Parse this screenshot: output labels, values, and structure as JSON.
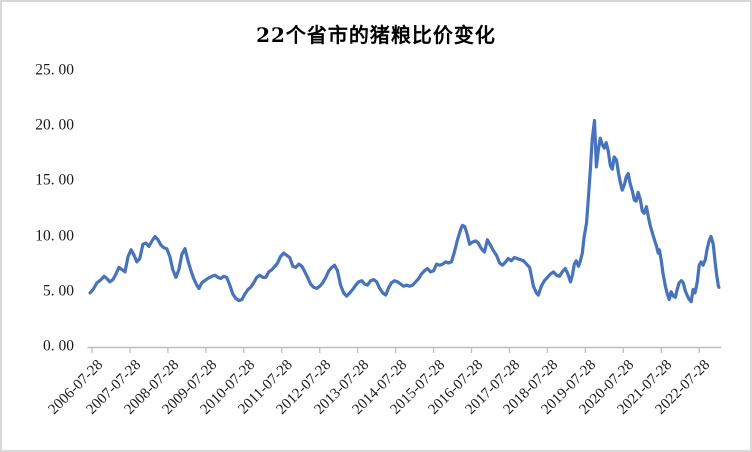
{
  "frame": {
    "background": "#ffffff",
    "border_color": "#d8d8d8"
  },
  "chart_data": {
    "type": "line",
    "title": "22个省市的猪粮比价变化",
    "xlabel": "",
    "ylabel": "",
    "grid": false,
    "legend": "none",
    "line_color": "#4472c4",
    "axis_color": "#bfbfbf",
    "label_color": "#1a1a1a",
    "ylim": [
      0,
      25
    ],
    "xlim": [
      2006.5,
      2023.15
    ],
    "y_ticks": [
      {
        "v": 0,
        "label": "0. 00"
      },
      {
        "v": 5,
        "label": "5. 00"
      },
      {
        "v": 10,
        "label": "10. 00"
      },
      {
        "v": 15,
        "label": "15. 00"
      },
      {
        "v": 20,
        "label": "20. 00"
      },
      {
        "v": 25,
        "label": "25. 00"
      }
    ],
    "x_ticks": [
      {
        "t": 2006.57,
        "label": "2006-07-28"
      },
      {
        "t": 2007.57,
        "label": "2007-07-28"
      },
      {
        "t": 2008.57,
        "label": "2008-07-28"
      },
      {
        "t": 2009.57,
        "label": "2009-07-28"
      },
      {
        "t": 2010.57,
        "label": "2010-07-28"
      },
      {
        "t": 2011.57,
        "label": "2011-07-28"
      },
      {
        "t": 2012.57,
        "label": "2012-07-28"
      },
      {
        "t": 2013.57,
        "label": "2013-07-28"
      },
      {
        "t": 2014.57,
        "label": "2014-07-28"
      },
      {
        "t": 2015.57,
        "label": "2015-07-28"
      },
      {
        "t": 2016.57,
        "label": "2016-07-28"
      },
      {
        "t": 2017.57,
        "label": "2017-07-28"
      },
      {
        "t": 2018.57,
        "label": "2018-07-28"
      },
      {
        "t": 2019.57,
        "label": "2019-07-28"
      },
      {
        "t": 2020.57,
        "label": "2020-07-28"
      },
      {
        "t": 2021.57,
        "label": "2021-07-28"
      },
      {
        "t": 2022.57,
        "label": "2022-07-28"
      }
    ],
    "series": [
      {
        "name": "猪粮比价",
        "color": "#4472c4",
        "points": [
          [
            2006.52,
            4.9
          ],
          [
            2006.6,
            5.2
          ],
          [
            2006.7,
            5.8
          ],
          [
            2006.81,
            6.1
          ],
          [
            2006.89,
            6.4
          ],
          [
            2006.96,
            6.2
          ],
          [
            2007.04,
            5.9
          ],
          [
            2007.12,
            6.1
          ],
          [
            2007.2,
            6.6
          ],
          [
            2007.28,
            7.2
          ],
          [
            2007.36,
            7.0
          ],
          [
            2007.44,
            6.8
          ],
          [
            2007.52,
            8.2
          ],
          [
            2007.6,
            8.8
          ],
          [
            2007.68,
            8.3
          ],
          [
            2007.75,
            7.7
          ],
          [
            2007.83,
            8.0
          ],
          [
            2007.91,
            9.3
          ],
          [
            2007.99,
            9.4
          ],
          [
            2008.07,
            9.1
          ],
          [
            2008.15,
            9.6
          ],
          [
            2008.23,
            10.0
          ],
          [
            2008.31,
            9.7
          ],
          [
            2008.39,
            9.2
          ],
          [
            2008.46,
            9.0
          ],
          [
            2008.54,
            8.9
          ],
          [
            2008.62,
            8.2
          ],
          [
            2008.7,
            7.0
          ],
          [
            2008.78,
            6.3
          ],
          [
            2008.86,
            7.0
          ],
          [
            2008.94,
            8.4
          ],
          [
            2009.02,
            8.9
          ],
          [
            2009.1,
            7.8
          ],
          [
            2009.18,
            6.9
          ],
          [
            2009.25,
            6.2
          ],
          [
            2009.33,
            5.6
          ],
          [
            2009.39,
            5.3
          ],
          [
            2009.46,
            5.8
          ],
          [
            2009.54,
            6.0
          ],
          [
            2009.62,
            6.2
          ],
          [
            2009.73,
            6.4
          ],
          [
            2009.81,
            6.5
          ],
          [
            2009.89,
            6.3
          ],
          [
            2009.96,
            6.2
          ],
          [
            2010.04,
            6.4
          ],
          [
            2010.12,
            6.3
          ],
          [
            2010.2,
            5.6
          ],
          [
            2010.28,
            4.8
          ],
          [
            2010.36,
            4.4
          ],
          [
            2010.44,
            4.2
          ],
          [
            2010.52,
            4.3
          ],
          [
            2010.6,
            4.8
          ],
          [
            2010.68,
            5.2
          ],
          [
            2010.75,
            5.4
          ],
          [
            2010.83,
            5.8
          ],
          [
            2010.91,
            6.3
          ],
          [
            2010.99,
            6.5
          ],
          [
            2011.07,
            6.3
          ],
          [
            2011.15,
            6.3
          ],
          [
            2011.23,
            6.8
          ],
          [
            2011.31,
            7.0
          ],
          [
            2011.39,
            7.3
          ],
          [
            2011.46,
            7.6
          ],
          [
            2011.54,
            8.2
          ],
          [
            2011.62,
            8.5
          ],
          [
            2011.7,
            8.3
          ],
          [
            2011.78,
            8.1
          ],
          [
            2011.86,
            7.3
          ],
          [
            2011.94,
            7.2
          ],
          [
            2012.02,
            7.5
          ],
          [
            2012.1,
            7.3
          ],
          [
            2012.18,
            6.8
          ],
          [
            2012.25,
            6.3
          ],
          [
            2012.33,
            5.7
          ],
          [
            2012.41,
            5.4
          ],
          [
            2012.49,
            5.3
          ],
          [
            2012.57,
            5.5
          ],
          [
            2012.65,
            5.8
          ],
          [
            2012.73,
            6.3
          ],
          [
            2012.81,
            6.9
          ],
          [
            2012.89,
            7.2
          ],
          [
            2012.96,
            7.4
          ],
          [
            2013.04,
            6.9
          ],
          [
            2013.12,
            5.6
          ],
          [
            2013.2,
            4.9
          ],
          [
            2013.28,
            4.6
          ],
          [
            2013.36,
            4.9
          ],
          [
            2013.44,
            5.2
          ],
          [
            2013.52,
            5.6
          ],
          [
            2013.6,
            5.9
          ],
          [
            2013.68,
            6.0
          ],
          [
            2013.75,
            5.7
          ],
          [
            2013.83,
            5.6
          ],
          [
            2013.91,
            6.0
          ],
          [
            2013.99,
            6.1
          ],
          [
            2014.07,
            5.9
          ],
          [
            2014.15,
            5.3
          ],
          [
            2014.23,
            4.9
          ],
          [
            2014.31,
            4.7
          ],
          [
            2014.39,
            5.4
          ],
          [
            2014.46,
            5.8
          ],
          [
            2014.54,
            6.0
          ],
          [
            2014.62,
            5.9
          ],
          [
            2014.7,
            5.7
          ],
          [
            2014.78,
            5.5
          ],
          [
            2014.86,
            5.6
          ],
          [
            2014.94,
            5.5
          ],
          [
            2015.02,
            5.6
          ],
          [
            2015.1,
            5.9
          ],
          [
            2015.18,
            6.2
          ],
          [
            2015.25,
            6.6
          ],
          [
            2015.33,
            6.9
          ],
          [
            2015.41,
            7.1
          ],
          [
            2015.49,
            6.8
          ],
          [
            2015.57,
            6.9
          ],
          [
            2015.65,
            7.5
          ],
          [
            2015.73,
            7.4
          ],
          [
            2015.81,
            7.5
          ],
          [
            2015.89,
            7.7
          ],
          [
            2015.96,
            7.6
          ],
          [
            2016.04,
            7.7
          ],
          [
            2016.12,
            8.6
          ],
          [
            2016.2,
            9.7
          ],
          [
            2016.28,
            10.6
          ],
          [
            2016.33,
            11.0
          ],
          [
            2016.39,
            10.9
          ],
          [
            2016.44,
            10.4
          ],
          [
            2016.52,
            9.3
          ],
          [
            2016.6,
            9.5
          ],
          [
            2016.68,
            9.6
          ],
          [
            2016.75,
            9.4
          ],
          [
            2016.83,
            8.9
          ],
          [
            2016.91,
            8.6
          ],
          [
            2016.99,
            9.7
          ],
          [
            2017.07,
            9.2
          ],
          [
            2017.15,
            8.7
          ],
          [
            2017.23,
            8.3
          ],
          [
            2017.31,
            7.6
          ],
          [
            2017.39,
            7.4
          ],
          [
            2017.47,
            7.7
          ],
          [
            2017.54,
            8.0
          ],
          [
            2017.62,
            7.8
          ],
          [
            2017.7,
            8.1
          ],
          [
            2017.78,
            8.0
          ],
          [
            2017.86,
            7.9
          ],
          [
            2017.94,
            7.8
          ],
          [
            2018.02,
            7.5
          ],
          [
            2018.1,
            7.2
          ],
          [
            2018.15,
            6.4
          ],
          [
            2018.2,
            5.5
          ],
          [
            2018.28,
            4.9
          ],
          [
            2018.33,
            4.7
          ],
          [
            2018.41,
            5.5
          ],
          [
            2018.49,
            6.0
          ],
          [
            2018.57,
            6.3
          ],
          [
            2018.65,
            6.6
          ],
          [
            2018.73,
            6.8
          ],
          [
            2018.81,
            6.5
          ],
          [
            2018.89,
            6.4
          ],
          [
            2018.96,
            6.8
          ],
          [
            2019.04,
            7.1
          ],
          [
            2019.1,
            6.7
          ],
          [
            2019.18,
            5.9
          ],
          [
            2019.23,
            6.5
          ],
          [
            2019.28,
            7.5
          ],
          [
            2019.33,
            7.8
          ],
          [
            2019.39,
            7.3
          ],
          [
            2019.44,
            7.8
          ],
          [
            2019.49,
            8.5
          ],
          [
            2019.54,
            10.0
          ],
          [
            2019.6,
            11.2
          ],
          [
            2019.65,
            13.5
          ],
          [
            2019.7,
            16.0
          ],
          [
            2019.75,
            18.8
          ],
          [
            2019.81,
            20.5
          ],
          [
            2019.86,
            16.3
          ],
          [
            2019.91,
            17.8
          ],
          [
            2019.96,
            18.9
          ],
          [
            2020.02,
            18.3
          ],
          [
            2020.07,
            18.0
          ],
          [
            2020.12,
            18.5
          ],
          [
            2020.17,
            17.8
          ],
          [
            2020.23,
            16.4
          ],
          [
            2020.28,
            16.1
          ],
          [
            2020.33,
            17.2
          ],
          [
            2020.39,
            16.9
          ],
          [
            2020.44,
            15.8
          ],
          [
            2020.49,
            14.9
          ],
          [
            2020.54,
            14.2
          ],
          [
            2020.6,
            14.7
          ],
          [
            2020.65,
            15.4
          ],
          [
            2020.7,
            15.7
          ],
          [
            2020.75,
            14.8
          ],
          [
            2020.81,
            14.1
          ],
          [
            2020.86,
            13.3
          ],
          [
            2020.91,
            13.2
          ],
          [
            2020.96,
            14.0
          ],
          [
            2021.02,
            13.3
          ],
          [
            2021.07,
            12.3
          ],
          [
            2021.12,
            12.1
          ],
          [
            2021.18,
            12.7
          ],
          [
            2021.23,
            11.8
          ],
          [
            2021.28,
            11.0
          ],
          [
            2021.33,
            10.4
          ],
          [
            2021.39,
            9.7
          ],
          [
            2021.44,
            9.2
          ],
          [
            2021.49,
            8.5
          ],
          [
            2021.52,
            8.8
          ],
          [
            2021.57,
            7.8
          ],
          [
            2021.62,
            6.6
          ],
          [
            2021.68,
            5.5
          ],
          [
            2021.73,
            4.8
          ],
          [
            2021.78,
            4.3
          ],
          [
            2021.83,
            5.0
          ],
          [
            2021.89,
            4.6
          ],
          [
            2021.94,
            4.5
          ],
          [
            2021.99,
            5.2
          ],
          [
            2022.04,
            5.8
          ],
          [
            2022.1,
            6.0
          ],
          [
            2022.15,
            5.8
          ],
          [
            2022.2,
            5.1
          ],
          [
            2022.25,
            4.7
          ],
          [
            2022.31,
            4.3
          ],
          [
            2022.36,
            4.1
          ],
          [
            2022.41,
            5.2
          ],
          [
            2022.46,
            4.9
          ],
          [
            2022.52,
            5.9
          ],
          [
            2022.57,
            7.4
          ],
          [
            2022.62,
            7.7
          ],
          [
            2022.67,
            7.4
          ],
          [
            2022.73,
            7.9
          ],
          [
            2022.78,
            8.9
          ],
          [
            2022.83,
            9.6
          ],
          [
            2022.88,
            10.0
          ],
          [
            2022.94,
            9.3
          ],
          [
            2022.99,
            7.7
          ],
          [
            2023.03,
            6.5
          ],
          [
            2023.07,
            5.6
          ],
          [
            2023.09,
            5.4
          ]
        ]
      }
    ]
  }
}
